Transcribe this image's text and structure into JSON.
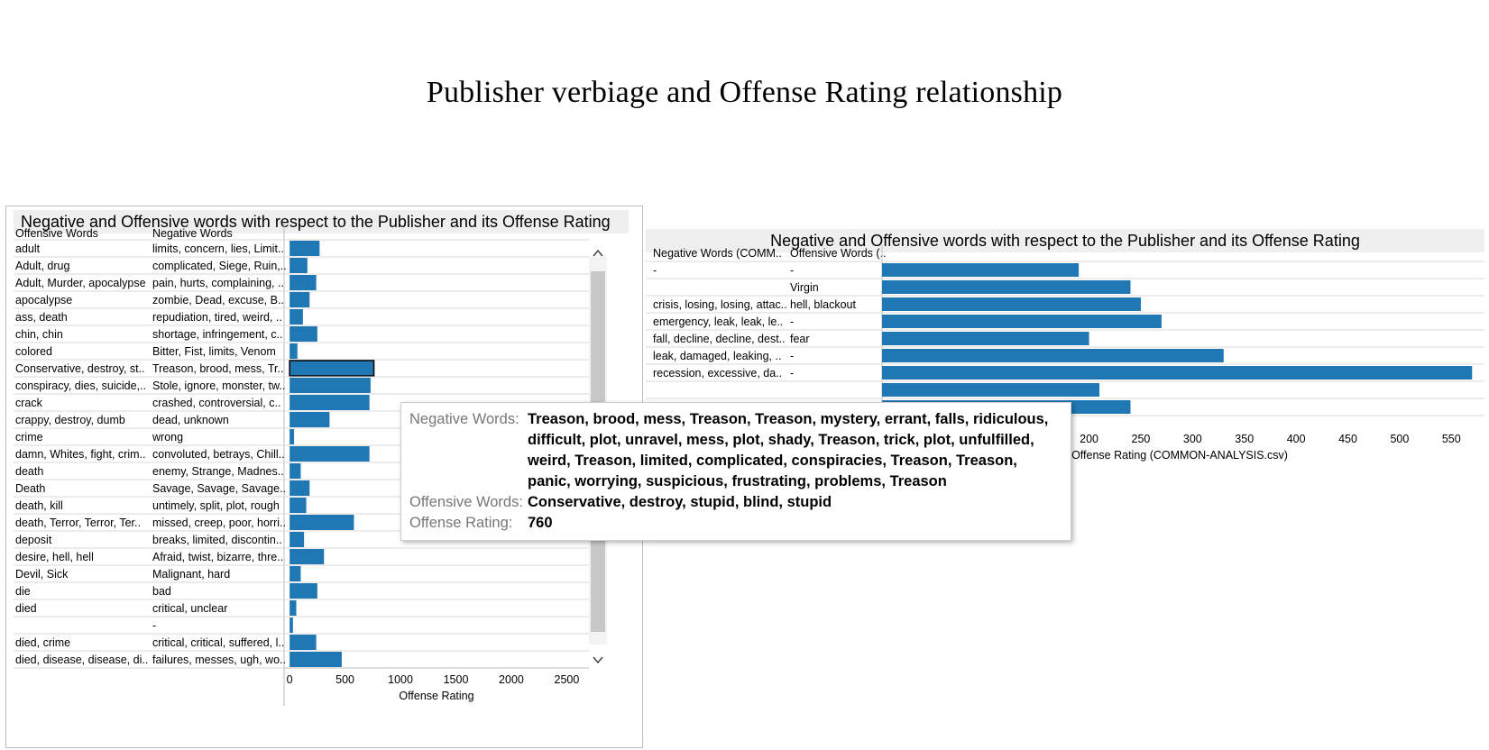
{
  "page_title": "Publisher verbiage and Offense Rating relationship",
  "chart_data": [
    {
      "type": "bar",
      "orientation": "horizontal",
      "title": "Negative and Offensive words with respect to the Publisher and its Offense Rating",
      "columns": [
        "Offensive Words",
        "Negative Words"
      ],
      "xlabel": "Offense Rating",
      "xlim": [
        -50,
        2700
      ],
      "xticks": [
        0,
        500,
        1000,
        1500,
        2000,
        2500
      ],
      "rows": [
        {
          "offensive": "adult",
          "negative": "limits, concern, lies, Limit..",
          "value": 270
        },
        {
          "offensive": "Adult, drug",
          "negative": "complicated, Siege, Ruin,..",
          "value": 160
        },
        {
          "offensive": "Adult, Murder, apocalypse",
          "negative": "pain, hurts, complaining, ..",
          "value": 240
        },
        {
          "offensive": "apocalypse",
          "negative": "zombie, Dead, excuse, B..",
          "value": 180
        },
        {
          "offensive": "ass, death",
          "negative": "repudiation, tired, weird, ..",
          "value": 120
        },
        {
          "offensive": "chin, chin",
          "negative": "shortage, infringement, c..",
          "value": 250
        },
        {
          "offensive": "colored",
          "negative": "Bitter, Fist, limits, Venom",
          "value": 70
        },
        {
          "offensive": "Conservative, destroy, st..",
          "negative": "Treason, brood, mess, Tr..",
          "value": 760,
          "selected": true
        },
        {
          "offensive": "conspiracy, dies, suicide,..",
          "negative": "Stole, ignore, monster, tw..",
          "value": 730
        },
        {
          "offensive": "crack",
          "negative": "crashed, controversial, c..",
          "value": 720
        },
        {
          "offensive": "crappy, destroy, dumb",
          "negative": "dead, unknown",
          "value": 360
        },
        {
          "offensive": "crime",
          "negative": "wrong",
          "value": 40
        },
        {
          "offensive": "damn, Whites, fight, crim..",
          "negative": "convoluted, betrays, Chill..",
          "value": 720
        },
        {
          "offensive": "death",
          "negative": "enemy, Strange, Madnes..",
          "value": 100
        },
        {
          "offensive": "Death",
          "negative": "Savage, Savage, Savage..",
          "value": 180
        },
        {
          "offensive": "death, kill",
          "negative": "untimely, split, plot, rough",
          "value": 150
        },
        {
          "offensive": "death, Terror, Terror, Ter..",
          "negative": "missed, creep, poor, horri..",
          "value": 580
        },
        {
          "offensive": "deposit",
          "negative": "breaks, limited, discontin..",
          "value": 130
        },
        {
          "offensive": "desire, hell, hell",
          "negative": "Afraid, twist, bizarre, thre..",
          "value": 310
        },
        {
          "offensive": "Devil, Sick",
          "negative": "Malignant, hard",
          "value": 100
        },
        {
          "offensive": "die",
          "negative": "bad",
          "value": 250
        },
        {
          "offensive": "died",
          "negative": "critical, unclear",
          "value": 60
        },
        {
          "offensive": "",
          "negative": "-",
          "value": 30
        },
        {
          "offensive": "died, crime",
          "negative": "critical, critical, suffered, l..",
          "value": 240
        },
        {
          "offensive": "died, disease, disease, di..",
          "negative": "failures, messes, ugh, wo..",
          "value": 470
        }
      ]
    },
    {
      "type": "bar",
      "orientation": "horizontal",
      "title": "Negative and Offensive words with respect to the Publisher and its Offense Rating",
      "columns": [
        "Negative Words (COMM..",
        "Offensive Words (.."
      ],
      "xlabel": "Offense Rating (COMMON-ANALYSIS.csv)",
      "xlim": [
        0,
        575
      ],
      "xticks": [
        0,
        50,
        100,
        150,
        200,
        250,
        300,
        350,
        400,
        450,
        500,
        550
      ],
      "rows": [
        {
          "negative": "-",
          "offensive": "-",
          "value": 190
        },
        {
          "negative": "",
          "offensive": "Virgin",
          "value": 240
        },
        {
          "negative": "crisis, losing, losing, attac..",
          "offensive": "hell, blackout",
          "value": 250
        },
        {
          "negative": "emergency, leak, leak, le..",
          "offensive": "-",
          "value": 270
        },
        {
          "negative": "fall, decline, decline, dest..",
          "offensive": "fear",
          "value": 200
        },
        {
          "negative": "leak, damaged, leaking, ..",
          "offensive": "-",
          "value": 330
        },
        {
          "negative": "recession, excessive, da..",
          "offensive": "-",
          "value": 570
        },
        {
          "negative": "",
          "offensive": "",
          "value": 210
        },
        {
          "negative": "",
          "offensive": "",
          "value": 240
        }
      ]
    }
  ],
  "tooltip": {
    "negative_label": "Negative Words:",
    "negative_value": "Treason, brood, mess, Treason, Treason, mystery, errant, falls, ridiculous, difficult, plot, unravel, mess, plot, shady, Treason, trick, plot, unfulfilled, weird, Treason, limited, complicated, conspiracies, Treason, Treason, panic, worrying, suspicious, frustrating, problems, Treason",
    "offensive_label": "Offensive Words:",
    "offensive_value": "Conservative, destroy, stupid, blind, stupid",
    "rating_label": "Offense Rating:",
    "rating_value": "760"
  },
  "colors": {
    "bar": "#1f77b4",
    "grid": "#d9d9d9",
    "scrollbar": "#c8c8c8"
  }
}
